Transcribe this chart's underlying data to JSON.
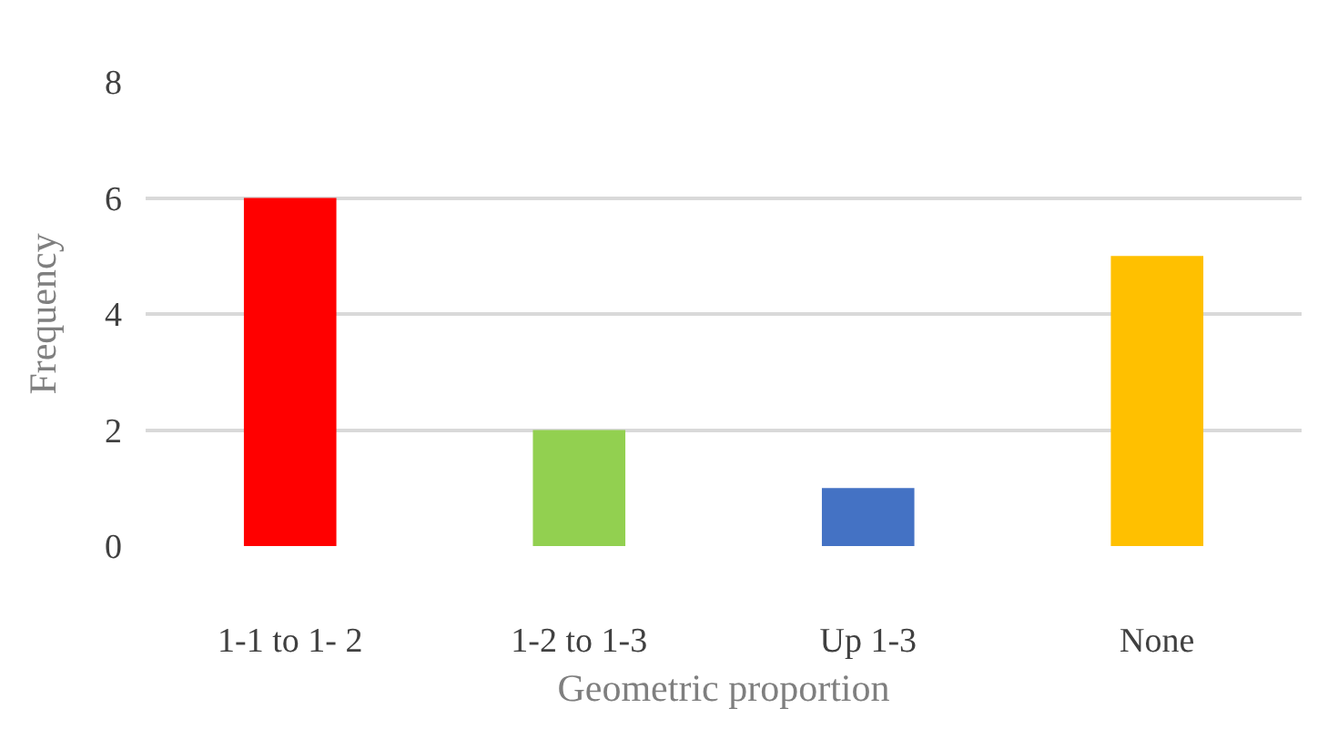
{
  "chart_data": {
    "type": "bar",
    "xlabel": "Geometric proportion",
    "ylabel": "Frequency",
    "categories": [
      "1-1 to 1- 2",
      "1-2 to 1-3",
      "Up 1-3",
      "None"
    ],
    "values": [
      6,
      2,
      1,
      5
    ],
    "colors": [
      "#ff0000",
      "#92d050",
      "#4472c4",
      "#ffc000"
    ],
    "ylim": [
      0,
      8
    ],
    "yticks": [
      0,
      2,
      4,
      6,
      8
    ],
    "grid": "y"
  }
}
